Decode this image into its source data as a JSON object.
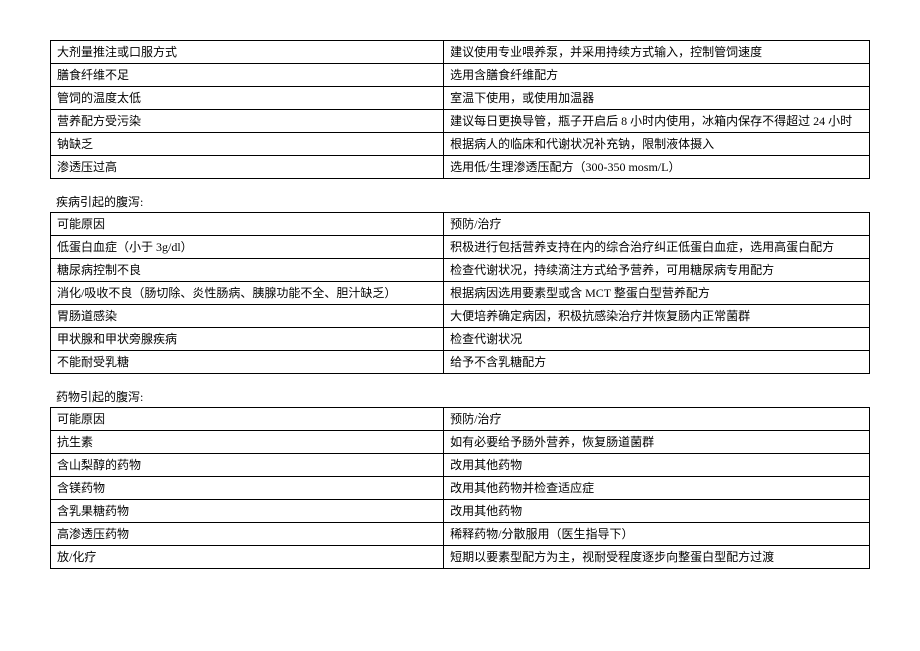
{
  "table1": {
    "rows": [
      [
        "大剂量推注或口服方式",
        "建议使用专业喂养泵，并采用持续方式输入，控制管饲速度"
      ],
      [
        "膳食纤维不足",
        "选用含膳食纤维配方"
      ],
      [
        "管饲的温度太低",
        "室温下使用，或使用加温器"
      ],
      [
        "营养配方受污染",
        "建议每日更换导管，瓶子开启后 8 小时内使用，冰箱内保存不得超过 24 小时"
      ],
      [
        "钠缺乏",
        "根据病人的临床和代谢状况补充钠，限制液体摄入"
      ],
      [
        "渗透压过高",
        "选用低/生理渗透压配方（300-350 mosm/L）"
      ]
    ]
  },
  "section2": {
    "title": "疾病引起的腹泻:",
    "rows": [
      [
        "可能原因",
        "预防/治疗"
      ],
      [
        "低蛋白血症（小于 3g/dl）",
        "积极进行包括营养支持在内的综合治疗纠正低蛋白血症，选用高蛋白配方"
      ],
      [
        "糖尿病控制不良",
        "检查代谢状况，持续滴注方式给予营养，可用糖尿病专用配方"
      ],
      [
        "消化/吸收不良（肠切除、炎性肠病、胰腺功能不全、胆汁缺乏）",
        "根据病因选用要素型或含 MCT 整蛋白型营养配方"
      ],
      [
        "胃肠道感染",
        "大便培养确定病因，积极抗感染治疗并恢复肠内正常菌群"
      ],
      [
        "甲状腺和甲状旁腺疾病",
        "检查代谢状况"
      ],
      [
        "不能耐受乳糖",
        "给予不含乳糖配方"
      ]
    ]
  },
  "section3": {
    "title": "药物引起的腹泻:",
    "rows": [
      [
        "可能原因",
        "预防/治疗"
      ],
      [
        "抗生素",
        "如有必要给予肠外营养，恢复肠道菌群"
      ],
      [
        "含山梨醇的药物",
        "改用其他药物"
      ],
      [
        "含镁药物",
        "改用其他药物并检查适应症"
      ],
      [
        "含乳果糖药物",
        "改用其他药物"
      ],
      [
        "高渗透压药物",
        "稀释药物/分散服用（医生指导下）"
      ],
      [
        "放/化疗",
        "短期以要素型配方为主，视耐受程度逐步向整蛋白型配方过渡"
      ]
    ]
  }
}
